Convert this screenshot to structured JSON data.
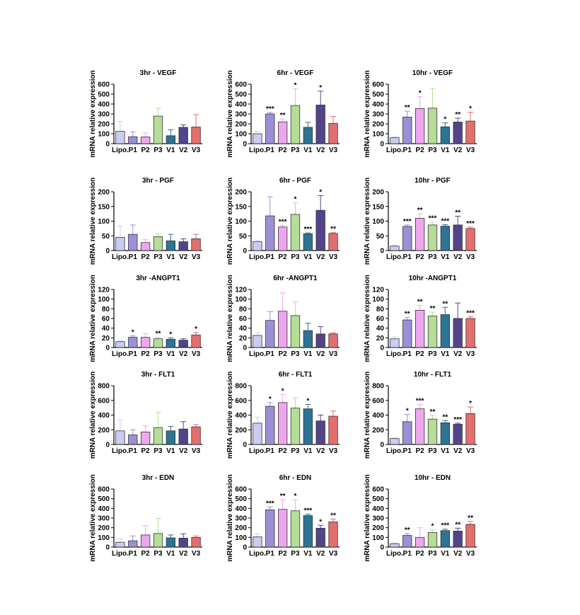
{
  "figure": {
    "categories": [
      "Lipo.",
      "P1",
      "P2",
      "P3",
      "V1",
      "V2",
      "V3"
    ],
    "ylabel": "mRNA relative expression",
    "bar_colors": [
      "#c9cdf2",
      "#9c8fd6",
      "#eea7ee",
      "#b5dd98",
      "#2b7494",
      "#53448a",
      "#e36e6e"
    ],
    "axis_color": "#000000"
  },
  "chart_data": [
    {
      "type": "bar",
      "title": "3hr - VEGF",
      "ylabel": "mRNA relative expression",
      "categories": [
        "Lipo.",
        "P1",
        "P2",
        "P3",
        "V1",
        "V2",
        "V3"
      ],
      "ylim": [
        0,
        600
      ],
      "yticks": [
        0,
        100,
        200,
        300,
        400,
        500,
        600
      ],
      "values": [
        125,
        70,
        68,
        278,
        80,
        165,
        168
      ],
      "errors": [
        100,
        50,
        40,
        80,
        60,
        25,
        125
      ],
      "significance": [
        "",
        "",
        "",
        "",
        "",
        "",
        ""
      ]
    },
    {
      "type": "bar",
      "title": "6hr - VEGF",
      "ylabel": "mRNA relative expression",
      "categories": [
        "Lipo.",
        "P1",
        "P2",
        "P3",
        "V1",
        "V2",
        "V3"
      ],
      "ylim": [
        0,
        600
      ],
      "yticks": [
        0,
        100,
        200,
        300,
        400,
        500,
        600
      ],
      "values": [
        100,
        300,
        220,
        385,
        165,
        390,
        205
      ],
      "errors": [
        25,
        15,
        30,
        170,
        50,
        140,
        70
      ],
      "significance": [
        "",
        "***",
        "**",
        "*",
        "",
        "*",
        ""
      ]
    },
    {
      "type": "bar",
      "title": "10hr - VEGF",
      "ylabel": "mRNA relative expression",
      "categories": [
        "Lipo.",
        "P1",
        "P2",
        "P3",
        "V1",
        "V2",
        "V3"
      ],
      "ylim": [
        0,
        600
      ],
      "yticks": [
        0,
        100,
        200,
        300,
        400,
        500,
        600
      ],
      "values": [
        60,
        268,
        355,
        358,
        170,
        218,
        228
      ],
      "errors": [
        10,
        60,
        120,
        200,
        40,
        40,
        90
      ],
      "significance": [
        "",
        "**",
        "*",
        "",
        "*",
        "**",
        "*"
      ]
    },
    {
      "type": "bar",
      "title": "3hr - PGF",
      "ylabel": "mRNA relative expression",
      "categories": [
        "Lipo.",
        "P1",
        "P2",
        "P3",
        "V1",
        "V2",
        "V3"
      ],
      "ylim": [
        0,
        200
      ],
      "yticks": [
        0,
        50,
        100,
        150,
        200
      ],
      "values": [
        45,
        55,
        27,
        47,
        33,
        30,
        40
      ],
      "errors": [
        38,
        32,
        10,
        10,
        22,
        10,
        15
      ],
      "significance": [
        "",
        "",
        "",
        "",
        "",
        "",
        ""
      ]
    },
    {
      "type": "bar",
      "title": "6hr - PGF",
      "ylabel": "mRNA relative expression",
      "categories": [
        "Lipo.",
        "P1",
        "P2",
        "P3",
        "V1",
        "V2",
        "V3"
      ],
      "ylim": [
        0,
        200
      ],
      "yticks": [
        0,
        50,
        100,
        150,
        200
      ],
      "values": [
        30,
        118,
        80,
        123,
        57,
        137,
        58
      ],
      "errors": [
        5,
        65,
        5,
        40,
        3,
        50,
        3
      ],
      "significance": [
        "",
        "",
        "***",
        "*",
        "***",
        "*",
        "**"
      ]
    },
    {
      "type": "bar",
      "title": "10hr - PGF",
      "ylabel": "mRNA relative expression",
      "categories": [
        "Lipo.",
        "P1",
        "P2",
        "P3",
        "V1",
        "V2",
        "V3"
      ],
      "ylim": [
        0,
        200
      ],
      "yticks": [
        0,
        50,
        100,
        150,
        200
      ],
      "values": [
        15,
        82,
        110,
        87,
        83,
        87,
        75
      ],
      "errors": [
        3,
        5,
        15,
        10,
        5,
        30,
        5
      ],
      "significance": [
        "",
        "***",
        "**",
        "***",
        "***",
        "**",
        "***"
      ]
    },
    {
      "type": "bar",
      "title": "3hr -ANGPT1",
      "ylabel": "mRNA relative expression",
      "categories": [
        "Lipo.",
        "P1",
        "P2",
        "P3",
        "V1",
        "V2",
        "V3"
      ],
      "ylim": [
        0,
        120
      ],
      "yticks": [
        0,
        20,
        40,
        60,
        80,
        100,
        120
      ],
      "values": [
        12,
        21,
        21,
        18,
        17,
        15,
        26
      ],
      "errors": [
        2,
        3,
        8,
        3,
        3,
        3,
        5
      ],
      "significance": [
        "",
        "*",
        "",
        "**",
        "*",
        "",
        "*"
      ]
    },
    {
      "type": "bar",
      "title": "6hr -ANGPT1",
      "ylabel": "mRNA relative expression",
      "categories": [
        "Lipo.",
        "P1",
        "P2",
        "P3",
        "V1",
        "V2",
        "V3"
      ],
      "ylim": [
        0,
        120
      ],
      "yticks": [
        0,
        20,
        40,
        60,
        80,
        100,
        120
      ],
      "values": [
        25,
        56,
        75,
        66,
        35,
        28,
        28
      ],
      "errors": [
        6,
        18,
        38,
        28,
        15,
        15,
        2
      ],
      "significance": [
        "",
        "",
        "",
        "",
        "",
        "",
        ""
      ]
    },
    {
      "type": "bar",
      "title": "10hr -ANGPT1",
      "ylabel": "mRNA relative expression",
      "categories": [
        "Lipo.",
        "P1",
        "P2",
        "P3",
        "V1",
        "V2",
        "V3"
      ],
      "ylim": [
        0,
        120
      ],
      "yticks": [
        0,
        20,
        40,
        60,
        80,
        100,
        120
      ],
      "values": [
        18,
        57,
        77,
        65,
        68,
        60,
        60
      ],
      "errors": [
        4,
        5,
        10,
        8,
        15,
        32,
        4
      ],
      "significance": [
        "",
        "**",
        "**",
        "**",
        "**",
        "",
        "***"
      ]
    },
    {
      "type": "bar",
      "title": "3hr - FLT1",
      "ylabel": "mRNA relative expression",
      "categories": [
        "Lipo.",
        "P1",
        "P2",
        "P3",
        "V1",
        "V2",
        "V3"
      ],
      "ylim": [
        0,
        800
      ],
      "yticks": [
        0,
        200,
        400,
        600,
        800
      ],
      "values": [
        185,
        130,
        170,
        230,
        185,
        210,
        240
      ],
      "errors": [
        145,
        70,
        80,
        210,
        60,
        100,
        30
      ],
      "significance": [
        "",
        "",
        "",
        "",
        "",
        "",
        ""
      ]
    },
    {
      "type": "bar",
      "title": "6hr - FLT1",
      "ylabel": "mRNA relative expression",
      "categories": [
        "Lipo.",
        "P1",
        "P2",
        "P3",
        "V1",
        "V2",
        "V3"
      ],
      "ylim": [
        0,
        800
      ],
      "yticks": [
        0,
        200,
        400,
        600,
        800
      ],
      "values": [
        290,
        520,
        570,
        495,
        485,
        320,
        385
      ],
      "errors": [
        80,
        50,
        110,
        140,
        60,
        80,
        70
      ],
      "significance": [
        "",
        "*",
        "*",
        "",
        "*",
        "",
        ""
      ]
    },
    {
      "type": "bar",
      "title": "10hr - FLT1",
      "ylabel": "mRNA relative expression",
      "categories": [
        "Lipo.",
        "P1",
        "P2",
        "P3",
        "V1",
        "V2",
        "V3"
      ],
      "ylim": [
        0,
        800
      ],
      "yticks": [
        0,
        200,
        400,
        600,
        800
      ],
      "values": [
        80,
        310,
        485,
        345,
        295,
        275,
        420
      ],
      "errors": [
        8,
        100,
        60,
        50,
        30,
        15,
        90
      ],
      "significance": [
        "",
        "*",
        "***",
        "**",
        "**",
        "***",
        "*"
      ]
    },
    {
      "type": "bar",
      "title": "3hr - EDN",
      "ylabel": "mRNA relative expression",
      "categories": [
        "Lipo.",
        "P1",
        "P2",
        "P3",
        "V1",
        "V2",
        "V3"
      ],
      "ylim": [
        0,
        600
      ],
      "yticks": [
        0,
        100,
        200,
        300,
        400,
        500,
        600
      ],
      "values": [
        50,
        65,
        125,
        140,
        95,
        92,
        100
      ],
      "errors": [
        35,
        50,
        95,
        155,
        30,
        45,
        15
      ],
      "significance": [
        "",
        "",
        "",
        "",
        "",
        "",
        ""
      ]
    },
    {
      "type": "bar",
      "title": "6hr - EDN",
      "ylabel": "mRNA relative expression",
      "categories": [
        "Lipo.",
        "P1",
        "P2",
        "P3",
        "V1",
        "V2",
        "V3"
      ],
      "ylim": [
        0,
        600
      ],
      "yticks": [
        0,
        100,
        200,
        300,
        400,
        500,
        600
      ],
      "values": [
        105,
        385,
        390,
        375,
        325,
        195,
        260
      ],
      "errors": [
        30,
        30,
        100,
        115,
        15,
        30,
        30
      ],
      "significance": [
        "",
        "***",
        "**",
        "*",
        "***",
        "*",
        "**"
      ]
    },
    {
      "type": "bar",
      "title": "10hr - EDN",
      "ylabel": "mRNA relative expression",
      "categories": [
        "Lipo.",
        "P1",
        "P2",
        "P3",
        "V1",
        "V2",
        "V3"
      ],
      "ylim": [
        0,
        600
      ],
      "yticks": [
        0,
        100,
        200,
        300,
        400,
        500,
        600
      ],
      "values": [
        35,
        120,
        100,
        150,
        170,
        165,
        235
      ],
      "errors": [
        8,
        20,
        100,
        30,
        15,
        30,
        30
      ],
      "significance": [
        "",
        "**",
        "",
        "*",
        "***",
        "**",
        "**"
      ]
    }
  ]
}
